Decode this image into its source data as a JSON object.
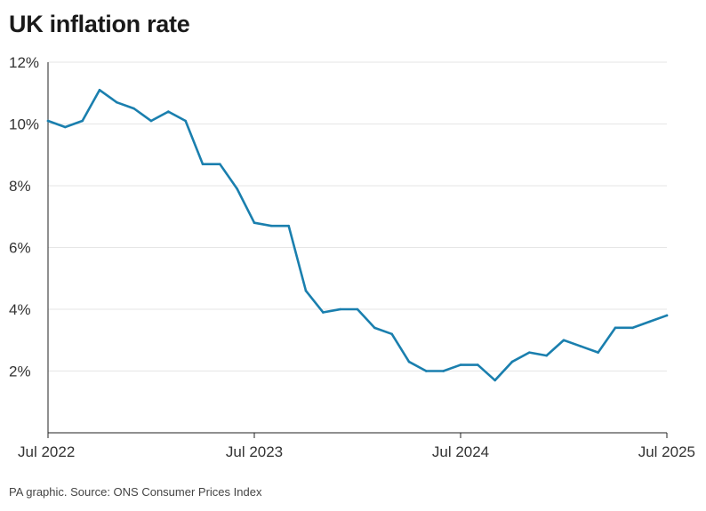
{
  "chart_data": {
    "type": "line",
    "title": "UK inflation rate",
    "source": "PA graphic. Source: ONS Consumer Prices Index",
    "xlabel": "",
    "ylabel": "",
    "ylim": [
      0,
      12
    ],
    "yticks": [
      2,
      4,
      6,
      8,
      10,
      12
    ],
    "ytick_labels": [
      "2%",
      "4%",
      "6%",
      "8%",
      "10%",
      "12%"
    ],
    "xticks": [
      "2022-07",
      "2023-07",
      "2024-07",
      "2025-07"
    ],
    "xtick_labels": [
      "Jul 2022",
      "Jul 2023",
      "Jul 2024",
      "Jul 2025"
    ],
    "grid": true,
    "colors": {
      "series": "#1a7fae",
      "grid": "#e6e6e6",
      "axis": "#222222"
    },
    "x": [
      "2022-07",
      "2022-08",
      "2022-09",
      "2022-10",
      "2022-11",
      "2022-12",
      "2023-01",
      "2023-02",
      "2023-03",
      "2023-04",
      "2023-05",
      "2023-06",
      "2023-07",
      "2023-08",
      "2023-09",
      "2023-10",
      "2023-11",
      "2023-12",
      "2024-01",
      "2024-02",
      "2024-03",
      "2024-04",
      "2024-05",
      "2024-06",
      "2024-07",
      "2024-08",
      "2024-09",
      "2024-10",
      "2024-11",
      "2024-12",
      "2025-01",
      "2025-02",
      "2025-03",
      "2025-04",
      "2025-05",
      "2025-06",
      "2025-07"
    ],
    "series": [
      {
        "values": [
          10.1,
          9.9,
          10.1,
          11.1,
          10.7,
          10.5,
          10.1,
          10.4,
          10.1,
          8.7,
          8.7,
          7.9,
          6.8,
          6.7,
          6.7,
          4.6,
          3.9,
          4.0,
          4.0,
          3.4,
          3.2,
          2.3,
          2.0,
          2.0,
          2.2,
          2.2,
          1.7,
          2.3,
          2.6,
          2.5,
          3.0,
          2.8,
          2.6,
          3.4,
          3.4,
          3.6,
          3.8
        ]
      }
    ]
  }
}
